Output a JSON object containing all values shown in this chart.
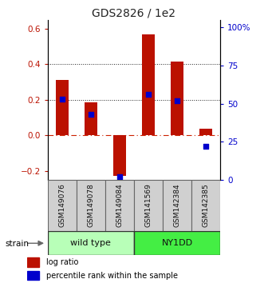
{
  "title": "GDS2826 / 1e2",
  "samples": [
    "GSM149076",
    "GSM149078",
    "GSM149084",
    "GSM141569",
    "GSM142384",
    "GSM142385"
  ],
  "log_ratios": [
    0.31,
    0.185,
    -0.23,
    0.57,
    0.415,
    0.035
  ],
  "percentile_ranks": [
    53,
    43,
    2,
    56,
    52,
    22
  ],
  "groups": [
    {
      "label": "wild type",
      "samples": [
        0,
        1,
        2
      ],
      "color": "#b8ffb8"
    },
    {
      "label": "NY1DD",
      "samples": [
        3,
        4,
        5
      ],
      "color": "#44ee44"
    }
  ],
  "bar_color": "#bb1100",
  "dot_color": "#0000cc",
  "left_ylim": [
    -0.25,
    0.65
  ],
  "right_ylim": [
    0,
    105
  ],
  "left_yticks": [
    -0.2,
    0.0,
    0.2,
    0.4,
    0.6
  ],
  "right_yticks": [
    0,
    25,
    50,
    75,
    100
  ],
  "right_yticklabels": [
    "0",
    "25",
    "50",
    "75",
    "100%"
  ],
  "hlines": [
    0.2,
    0.4
  ],
  "hline_zero_color": "#cc2200",
  "hline_color": "#222222",
  "strain_label": "strain",
  "legend_log_ratio": "log ratio",
  "legend_percentile": "percentile rank within the sample"
}
